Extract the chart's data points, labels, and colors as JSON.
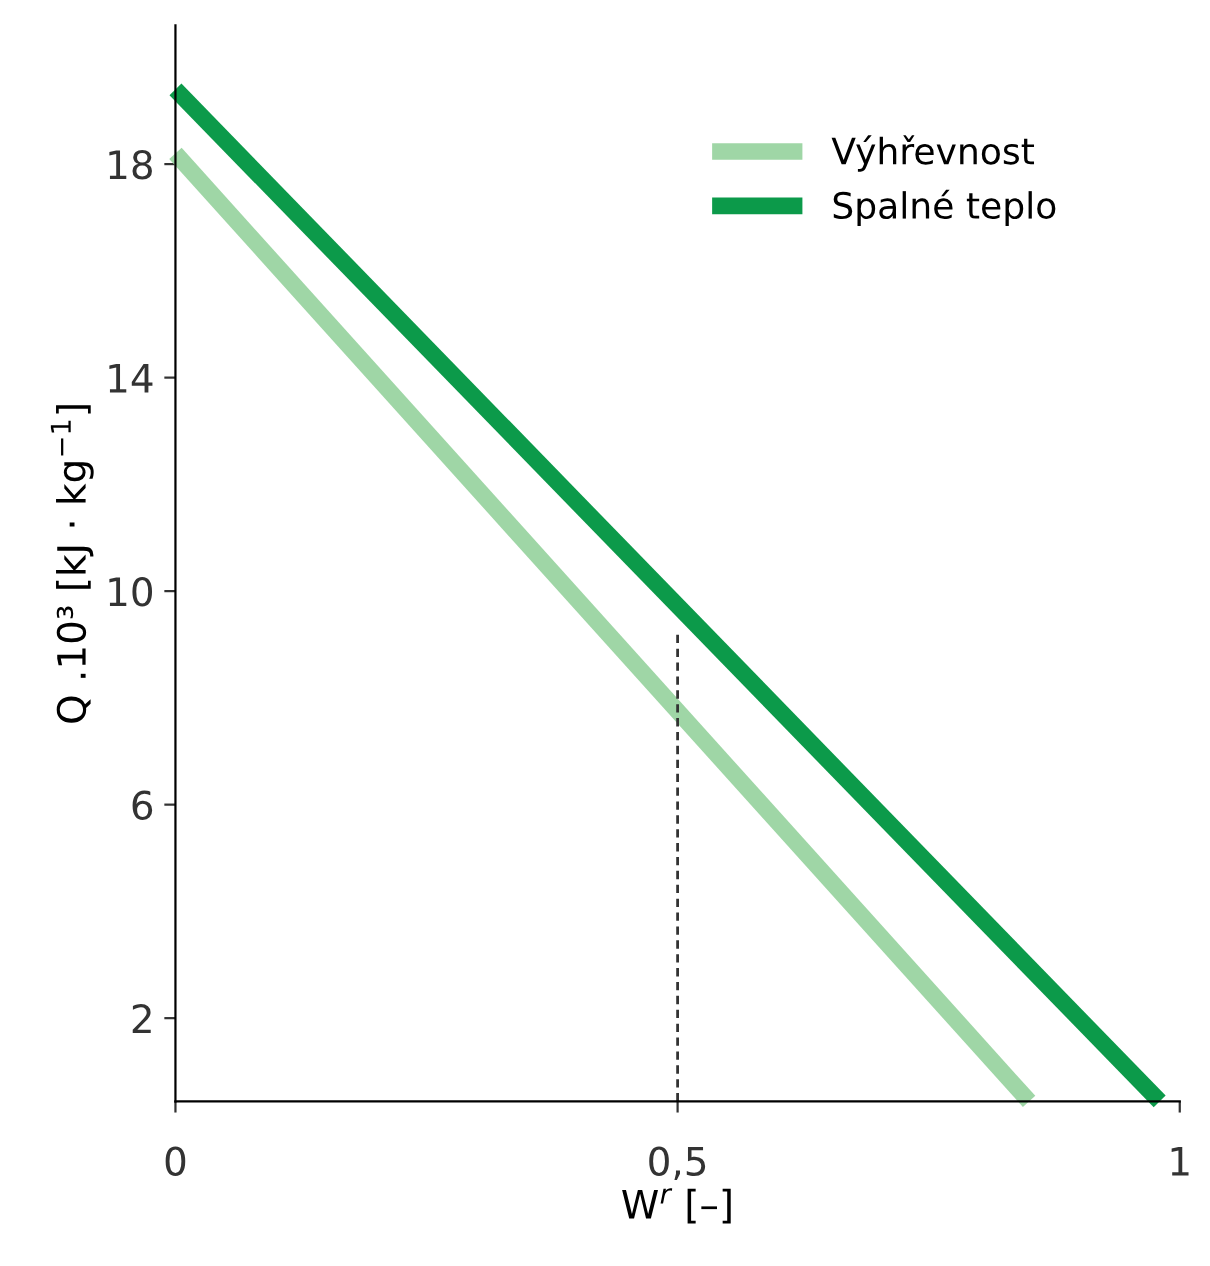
{
  "chart_data": {
    "type": "line",
    "xlabel": "W$^{r}$ [–]",
    "ylabel": "Q .10³ [kJ · kg$^{−1}$]",
    "xlim": [
      0,
      1
    ],
    "ylim": [
      0.44,
      20.6
    ],
    "xticks": [
      0,
      {
        "value": 0.5,
        "label": "0,5"
      },
      1
    ],
    "yticks": [
      2,
      6,
      10,
      14,
      18
    ],
    "grid": false,
    "legend": "top right",
    "marker": "none",
    "series": [
      {
        "name": "Výhřevnost",
        "color": "#9fd6a6",
        "x": [
          0,
          0.85
        ],
        "values": [
          18.2,
          0.44
        ]
      },
      {
        "name": "Spalné teplo",
        "color": "#0c9a4a",
        "x": [
          0,
          0.98
        ],
        "values": [
          19.4,
          0.44
        ]
      },
      {
        "color": "#333333",
        "x": [
          0.5,
          0.5
        ],
        "values": [
          0.44,
          9.2
        ],
        "line_style": "dashed"
      }
    ]
  }
}
